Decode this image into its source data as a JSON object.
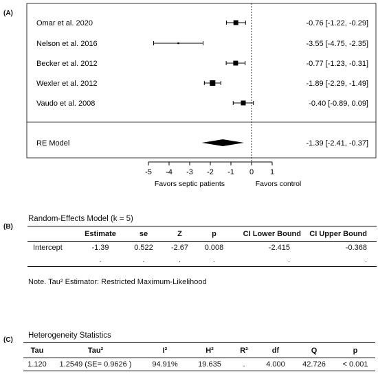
{
  "panel_labels": {
    "a": "(A)",
    "b": "(B)",
    "c": "(C)"
  },
  "chart_data": {
    "type": "forest",
    "studies": [
      {
        "label": "Omar et  al. 2020",
        "estimate": -0.76,
        "lower": -1.22,
        "upper": -0.29,
        "text": "-0.76 [-1.22, -0.29]"
      },
      {
        "label": "Nelson et al. 2016",
        "estimate": -3.55,
        "lower": -4.75,
        "upper": -2.35,
        "text": "-3.55 [-4.75, -2.35]"
      },
      {
        "label": "Becker et al. 2012",
        "estimate": -0.77,
        "lower": -1.23,
        "upper": -0.31,
        "text": "-0.77 [-1.23, -0.31]"
      },
      {
        "label": "Wexler et al. 2012",
        "estimate": -1.89,
        "lower": -2.29,
        "upper": -1.49,
        "text": "-1.89 [-2.29, -1.49]"
      },
      {
        "label": "Vaudo et al. 2008",
        "estimate": -0.4,
        "lower": -0.89,
        "upper": 0.09,
        "text": "-0.40 [-0.89,  0.09]"
      }
    ],
    "summary": {
      "label": "RE Model",
      "estimate": -1.39,
      "lower": -2.41,
      "upper": -0.37,
      "text": "-1.39 [-2.41, -0.37]"
    },
    "x_ticks": [
      -5,
      -4,
      -3,
      -2,
      -1,
      0,
      1
    ],
    "xlim": [
      -5,
      1
    ],
    "reference_line": 0,
    "xlabel_left": "Favors septic patients",
    "xlabel_right": "Favors control"
  },
  "re_table": {
    "title": "Random-Effects Model (k = 5)",
    "headers": [
      "",
      "Estimate",
      "se",
      "Z",
      "p",
      "CI Lower Bound",
      "CI Upper Bound"
    ],
    "rows": [
      [
        "Intercept",
        "-1.39",
        "0.522",
        "-2.67",
        "0.008",
        "-2.415",
        "-0.368"
      ],
      [
        "",
        ".",
        ".",
        ".",
        ".",
        ".",
        "."
      ]
    ],
    "note": "Note. Tau² Estimator: Restricted Maximum-Likelihood"
  },
  "het_table": {
    "title": "Heterogeneity Statistics",
    "headers": [
      "Tau",
      "Tau²",
      "I²",
      "H²",
      "R²",
      "df",
      "Q",
      "p"
    ],
    "rows": [
      [
        "1.120",
        "1.2549 (SE= 0.9626 )",
        "94.91%",
        "19.635",
        ".",
        "4.000",
        "42.726",
        "< 0.001"
      ]
    ]
  }
}
